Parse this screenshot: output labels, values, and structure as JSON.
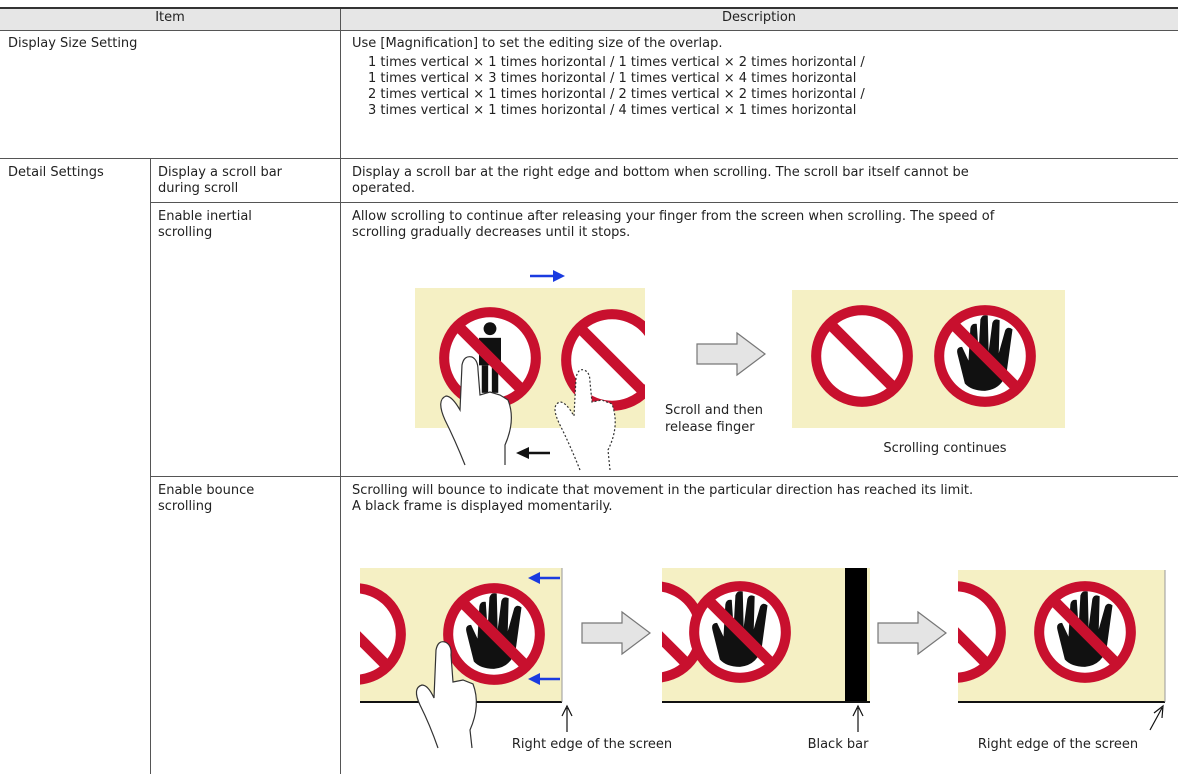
{
  "header": {
    "item": "Item",
    "description": "Description"
  },
  "rows": [
    {
      "item": "Display Size Setting",
      "description": [
        "Use [Magnification] to set the editing size of the overlap.",
        "1 times vertical × 1 times horizontal / 1 times vertical × 2 times horizontal /",
        "1 times vertical × 3 times horizontal / 1 times vertical × 4 times horizontal",
        "2 times vertical × 1 times horizontal / 2 times vertical × 2 times horizontal /",
        "3 times vertical × 1 times horizontal / 4 times vertical × 1 times horizontal"
      ]
    },
    {
      "item": "Detail Settings",
      "settings": [
        {
          "name": [
            "Display a scroll bar",
            "during scroll"
          ],
          "description": [
            "Display a scroll bar at the right edge and bottom when scrolling. The scroll bar itself cannot be",
            "operated."
          ]
        },
        {
          "name": [
            "Enable inertial",
            "scrolling"
          ],
          "description": [
            "Allow scrolling to continue after releasing your finger from the screen when scrolling. The speed of",
            "scrolling gradually decreases until it stops."
          ],
          "figure": {
            "step_caption": [
              "Scroll and then",
              "release finger"
            ],
            "result_caption": "Scrolling continues"
          }
        },
        {
          "name": [
            "Enable bounce",
            "scrolling"
          ],
          "description": [
            "Scrolling will bounce to indicate that movement in the particular direction has reached its limit.",
            "A black frame is displayed momentarily."
          ],
          "figure": {
            "captions": [
              "Right edge of the screen",
              "Black bar",
              "Right edge of the screen"
            ]
          }
        }
      ]
    }
  ]
}
